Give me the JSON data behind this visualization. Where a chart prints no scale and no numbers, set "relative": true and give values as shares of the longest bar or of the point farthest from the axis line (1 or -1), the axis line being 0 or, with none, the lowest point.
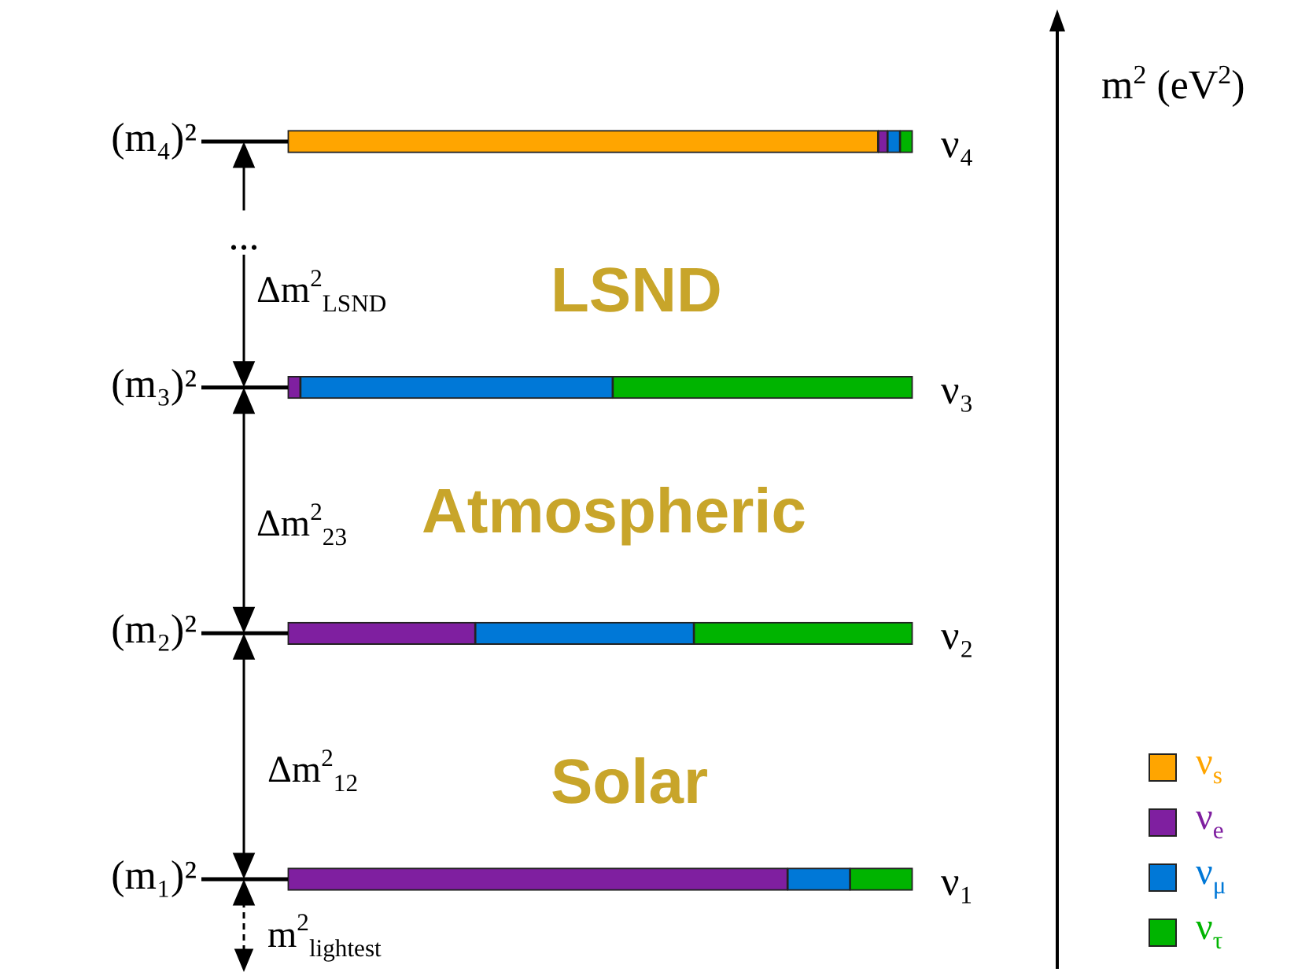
{
  "chart_data": {
    "type": "bar",
    "orientation": "horizontal",
    "stacked": true,
    "relative": true,
    "ylabel": "m$^{2}$ (eV$^{2}$)",
    "legend": "bottom right",
    "categories": [
      "ν₄",
      "ν₃",
      "ν₂",
      "ν₁"
    ],
    "series": [
      {
        "name": "ν$_{s}$",
        "color": "#ffa500",
        "values": [
          0.945,
          0,
          0,
          0
        ]
      },
      {
        "name": "ν$_{e}$",
        "color": "#7f1fa0",
        "values": [
          0.015,
          0.02,
          0.3,
          0.8
        ]
      },
      {
        "name": "ν$_{μ}$",
        "color": "#0078d7",
        "values": [
          0.02,
          0.5,
          0.35,
          0.1
        ]
      },
      {
        "name": "ν$_{τ}$",
        "color": "#00b400",
        "values": [
          0.02,
          0.48,
          0.35,
          0.1
        ]
      }
    ],
    "annotations": [
      "(m₄)²",
      "(m₃)²",
      "(m₂)²",
      "(m₁)²",
      "...",
      "Δm$^{2}$$_{LSND}$",
      "LSND",
      "Δm$^{2}$$_{23}$",
      "Atmospheric",
      "Δm$^{2}$$_{12}$",
      "Solar",
      "m$^{2}$$_{lightest}$"
    ]
  }
}
